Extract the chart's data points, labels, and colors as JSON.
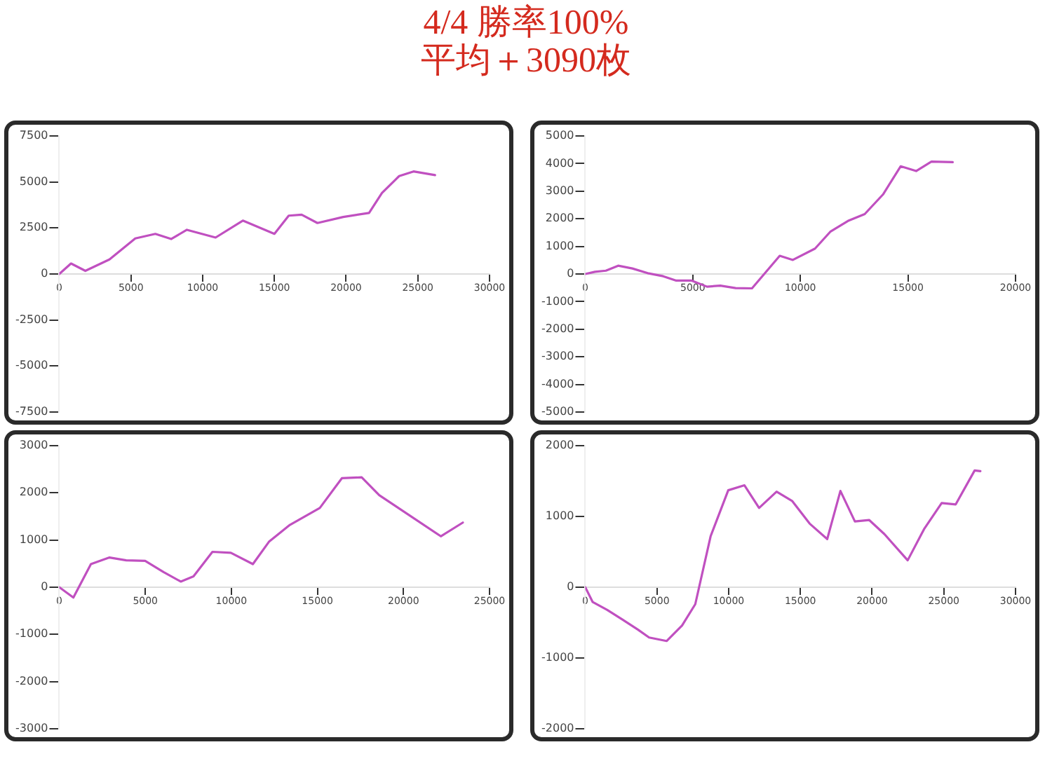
{
  "chart_data": [
    {
      "type": "line",
      "title": "4/4 勝率100%",
      "subtitle": "平均＋3090枚",
      "xlim": [
        0,
        30000
      ],
      "xticks": [
        0,
        5000,
        10000,
        15000,
        20000,
        25000,
        30000
      ],
      "ylim": [
        -7500,
        7500
      ],
      "yticks": [
        -7500,
        -5000,
        -2500,
        0,
        2500,
        5000,
        7500
      ],
      "grid": false,
      "marker": "none",
      "line_style": "solid",
      "series": [
        {
          "color": "#c050c0",
          "x": [
            0,
            820,
            1820,
            3500,
            5300,
            6700,
            7800,
            8900,
            10900,
            12800,
            15000,
            16000,
            16900,
            18000,
            19800,
            21600,
            22500,
            23700,
            24700,
            26200
          ],
          "values": [
            0,
            570,
            170,
            790,
            1930,
            2180,
            1900,
            2400,
            1980,
            2900,
            2180,
            3170,
            3220,
            2770,
            3100,
            3320,
            4400,
            5320,
            5570,
            5370
          ]
        }
      ]
    },
    {
      "type": "line",
      "xlim": [
        0,
        20000
      ],
      "xticks": [
        0,
        5000,
        10000,
        15000,
        20000
      ],
      "ylim": [
        -5000,
        5000
      ],
      "yticks": [
        -5000,
        -4000,
        -3000,
        -2000,
        -1000,
        0,
        1000,
        2000,
        3000,
        4000,
        5000
      ],
      "grid": false,
      "marker": "none",
      "line_style": "solid",
      "series": [
        {
          "color": "#c050c0",
          "x": [
            0,
            450,
            960,
            1530,
            2190,
            2900,
            3620,
            4230,
            4950,
            5660,
            6280,
            6990,
            7750,
            9040,
            9650,
            10680,
            11390,
            12210,
            12990,
            13840,
            14660,
            15380,
            16090,
            17080
          ],
          "values": [
            0,
            80,
            120,
            300,
            200,
            30,
            -80,
            -240,
            -240,
            -460,
            -420,
            -510,
            -520,
            660,
            510,
            920,
            1530,
            1920,
            2170,
            2880,
            3900,
            3730,
            4070,
            4050
          ]
        }
      ]
    },
    {
      "type": "line",
      "xlim": [
        0,
        25000
      ],
      "xticks": [
        0,
        5000,
        10000,
        15000,
        20000,
        25000
      ],
      "ylim": [
        -3000,
        3000
      ],
      "yticks": [
        -3000,
        -2000,
        -1000,
        0,
        1000,
        2000,
        3000
      ],
      "grid": false,
      "marker": "none",
      "line_style": "solid",
      "series": [
        {
          "color": "#c050c0",
          "x": [
            0,
            820,
            1840,
            2920,
            3890,
            4990,
            6060,
            7060,
            7800,
            8900,
            9970,
            11250,
            12200,
            13400,
            15140,
            16420,
            17570,
            18590,
            22170,
            23450
          ],
          "values": [
            0,
            -220,
            490,
            630,
            570,
            560,
            320,
            120,
            230,
            750,
            730,
            490,
            970,
            1320,
            1680,
            2310,
            2330,
            1950,
            1080,
            1370
          ]
        }
      ]
    },
    {
      "type": "line",
      "xlim": [
        0,
        30000
      ],
      "xticks": [
        0,
        5000,
        10000,
        15000,
        20000,
        25000,
        30000
      ],
      "ylim": [
        -2000,
        2000
      ],
      "yticks": [
        -2000,
        -1000,
        0,
        1000,
        2000
      ],
      "grid": false,
      "marker": "none",
      "line_style": "solid",
      "series": [
        {
          "color": "#c050c0",
          "x": [
            0,
            520,
            1530,
            2610,
            3680,
            4450,
            5670,
            6750,
            7670,
            8740,
            9970,
            11100,
            12120,
            13340,
            14420,
            15640,
            16870,
            17790,
            18800,
            19790,
            20860,
            22480,
            23620,
            24850,
            25830,
            27150,
            27550
          ],
          "values": [
            0,
            -210,
            -320,
            -460,
            -600,
            -710,
            -760,
            -540,
            -240,
            720,
            1370,
            1440,
            1120,
            1350,
            1220,
            900,
            680,
            1360,
            930,
            950,
            750,
            380,
            820,
            1190,
            1170,
            1650,
            1640
          ]
        }
      ]
    }
  ]
}
